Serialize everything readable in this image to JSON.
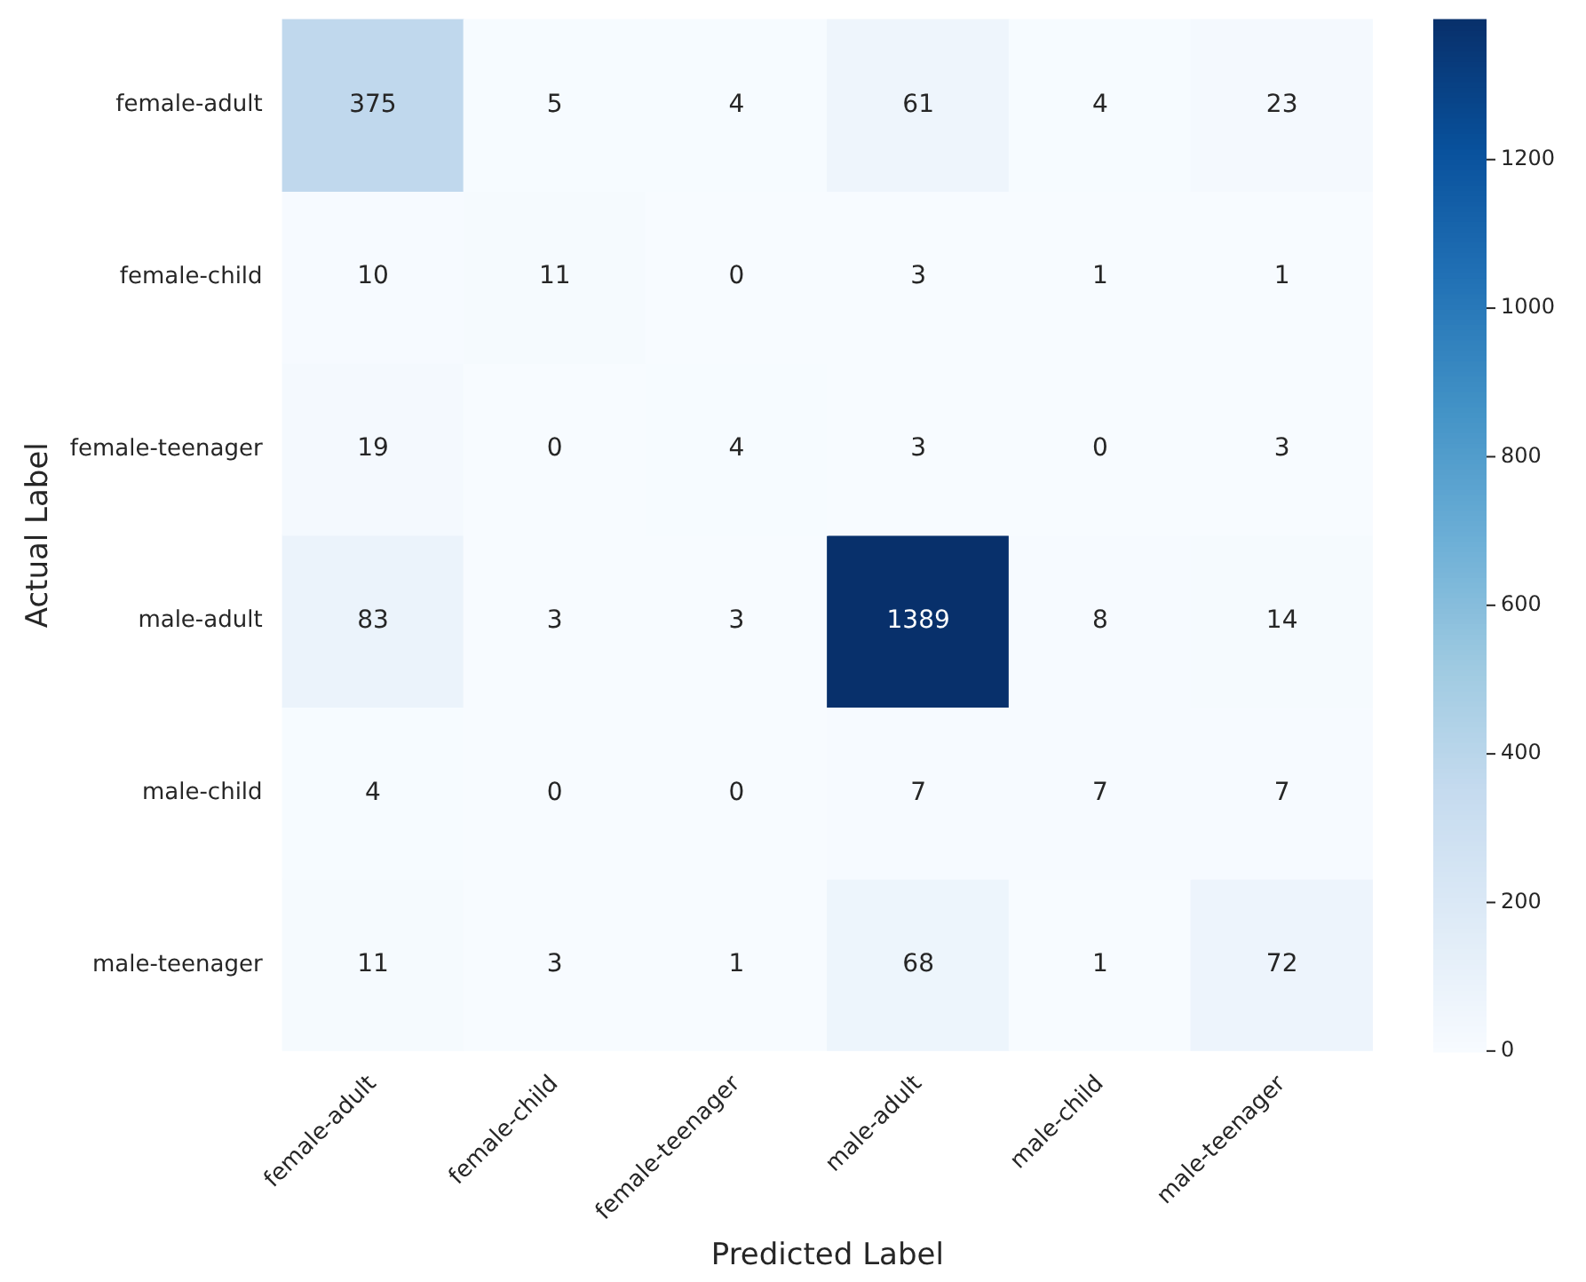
{
  "chart_data": {
    "type": "heatmap",
    "xlabel": "Predicted Label",
    "ylabel": "Actual Label",
    "categories": [
      "female-adult",
      "female-child",
      "female-teenager",
      "male-adult",
      "male-child",
      "male-teenager"
    ],
    "y_categories": [
      "female-adult",
      "female-child",
      "female-teenager",
      "male-adult",
      "male-child",
      "male-teenager"
    ],
    "cells": [
      [
        375,
        5,
        4,
        61,
        4,
        23
      ],
      [
        10,
        11,
        0,
        3,
        1,
        1
      ],
      [
        19,
        0,
        4,
        3,
        0,
        3
      ],
      [
        83,
        3,
        3,
        1389,
        8,
        14
      ],
      [
        4,
        0,
        0,
        7,
        7,
        7
      ],
      [
        11,
        3,
        1,
        68,
        1,
        72
      ]
    ],
    "clim": [
      0,
      1389
    ],
    "cticks": [
      0,
      200,
      400,
      600,
      800,
      1000,
      1200
    ],
    "data_labels": true
  }
}
